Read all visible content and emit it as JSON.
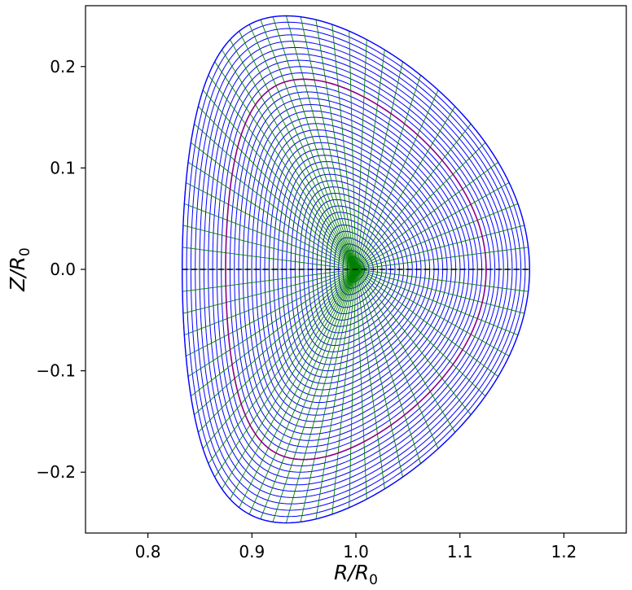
{
  "chart_data": {
    "type": "line",
    "title": "",
    "xlabel": {
      "main": "R/R",
      "sub": "0"
    },
    "ylabel": {
      "main": "Z/R",
      "sub": "0"
    },
    "xlim": [
      0.74,
      1.26
    ],
    "ylim": [
      -0.26,
      0.26
    ],
    "xticks": [
      0.8,
      0.9,
      1.0,
      1.1,
      1.2
    ],
    "xtick_labels": [
      "0.8",
      "0.9",
      "1.0",
      "1.1",
      "1.2"
    ],
    "yticks": [
      -0.2,
      -0.1,
      0.0,
      0.1,
      0.2
    ],
    "ytick_labels": [
      "−0.2",
      "−0.1",
      "0.0",
      "0.1",
      "0.2"
    ],
    "grid": false,
    "legend": "none",
    "mesh": {
      "description_values": "flux-surface grid of a D-shaped plasma boundary",
      "boundary": {
        "r_min": 0.833,
        "r_max": 1.167,
        "z_min": -0.25,
        "z_max": 0.25,
        "r_at_top": 0.933,
        "r_at_bottom": 0.933
      },
      "magnetic_axis": {
        "r": 1.0,
        "z": 0.0
      },
      "n_flux_surfaces": 40,
      "n_poloidal_lines": 72,
      "flux_surface_color": "#0000ff",
      "poloidal_line_color": "#008000",
      "highlighted_surface": {
        "rho": 0.75,
        "color": "#8b008b"
      },
      "midplane": {
        "z": 0.0,
        "color": "#000000",
        "style": "dashed"
      }
    }
  }
}
